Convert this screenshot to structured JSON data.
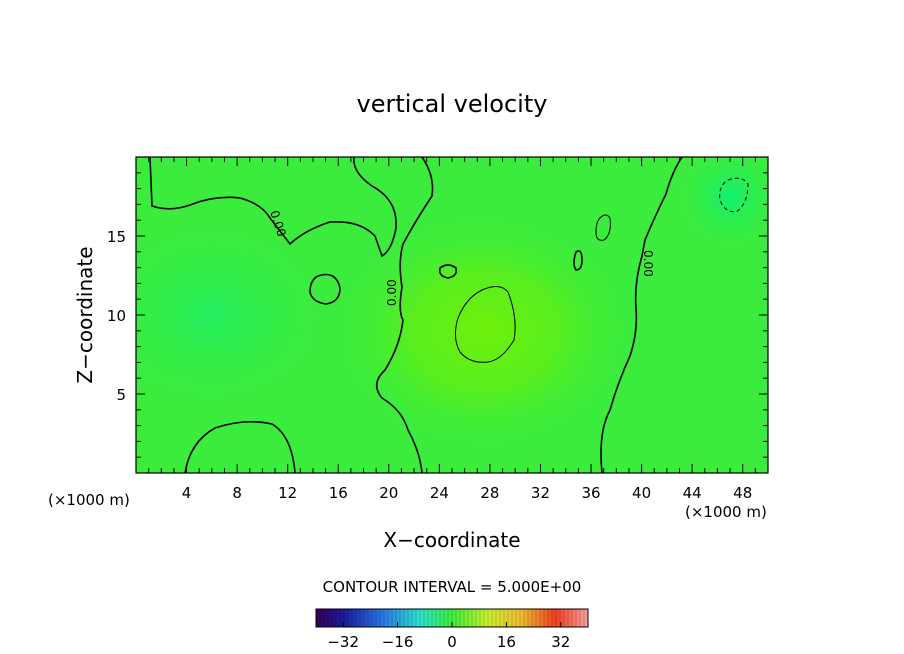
{
  "chart_data": {
    "type": "heatmap",
    "title": "vertical velocity",
    "xlabel": "X−coordinate",
    "ylabel": "Z−coordinate",
    "x_unit_left": "(×1000 m)",
    "x_unit_right": "(×1000 m)",
    "xlim": [
      0,
      50
    ],
    "ylim": [
      0,
      20
    ],
    "x_ticks": [
      4,
      8,
      12,
      16,
      20,
      24,
      28,
      32,
      36,
      40,
      44,
      48
    ],
    "y_ticks": [
      5,
      10,
      15
    ],
    "contour_interval_text": "CONTOUR INTERVAL = 5.000E+00",
    "contour_label": "0.00",
    "colorbar": {
      "range": [
        -40,
        40
      ],
      "ticks": [
        -32,
        -16,
        0,
        16,
        32
      ],
      "tick_labels": [
        "−32",
        "−16",
        "0",
        "16",
        "32"
      ]
    },
    "field_description": "Field mostly near 0 (green); weak positive maximum near x=27.5, z=9; weak negative minimum near x=47, z=17.5",
    "field_centers": [
      {
        "x": 27.5,
        "z": 9.0,
        "value": 3.5
      },
      {
        "x": 47.0,
        "z": 17.5,
        "value": -3.0
      },
      {
        "x": 6.0,
        "z": 10.0,
        "value": -1.5
      }
    ]
  }
}
